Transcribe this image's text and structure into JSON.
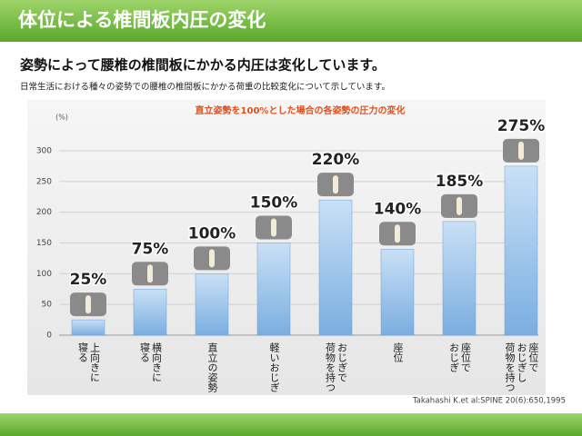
{
  "header": {
    "title": "体位による椎間板内圧の変化"
  },
  "heading": "姿勢によって腰椎の椎間板にかかる内圧は変化しています。",
  "description": "日常生活における種々の姿勢での腰椎の椎間板にかかる荷重の比較変化について示しています。",
  "chart_data": {
    "type": "bar",
    "title": "直立姿勢を100%とした場合の各姿勢の圧力の変化",
    "y_label": "(%)",
    "categories": [
      [
        "上向きに",
        "寝る"
      ],
      [
        "横向きに",
        "寝る"
      ],
      [
        "直立の姿勢"
      ],
      [
        "軽いおじぎ"
      ],
      [
        "おじぎで",
        "荷物を持つ"
      ],
      [
        "座位"
      ],
      [
        "座位で",
        "おじぎ"
      ],
      [
        "座位で",
        "おじぎし",
        "荷物を持つ"
      ]
    ],
    "values": [
      25,
      75,
      100,
      150,
      220,
      140,
      185,
      275
    ],
    "value_labels": [
      "25%",
      "75%",
      "100%",
      "150%",
      "220%",
      "140%",
      "185%",
      "275%"
    ],
    "color": "#8fbbe6",
    "ylim": [
      0,
      300
    ],
    "yticks": [
      0,
      50,
      100,
      150,
      200,
      250,
      300
    ],
    "grid": true
  },
  "source": "Takahashi K.et al:SPINE 20(6):650,1995"
}
